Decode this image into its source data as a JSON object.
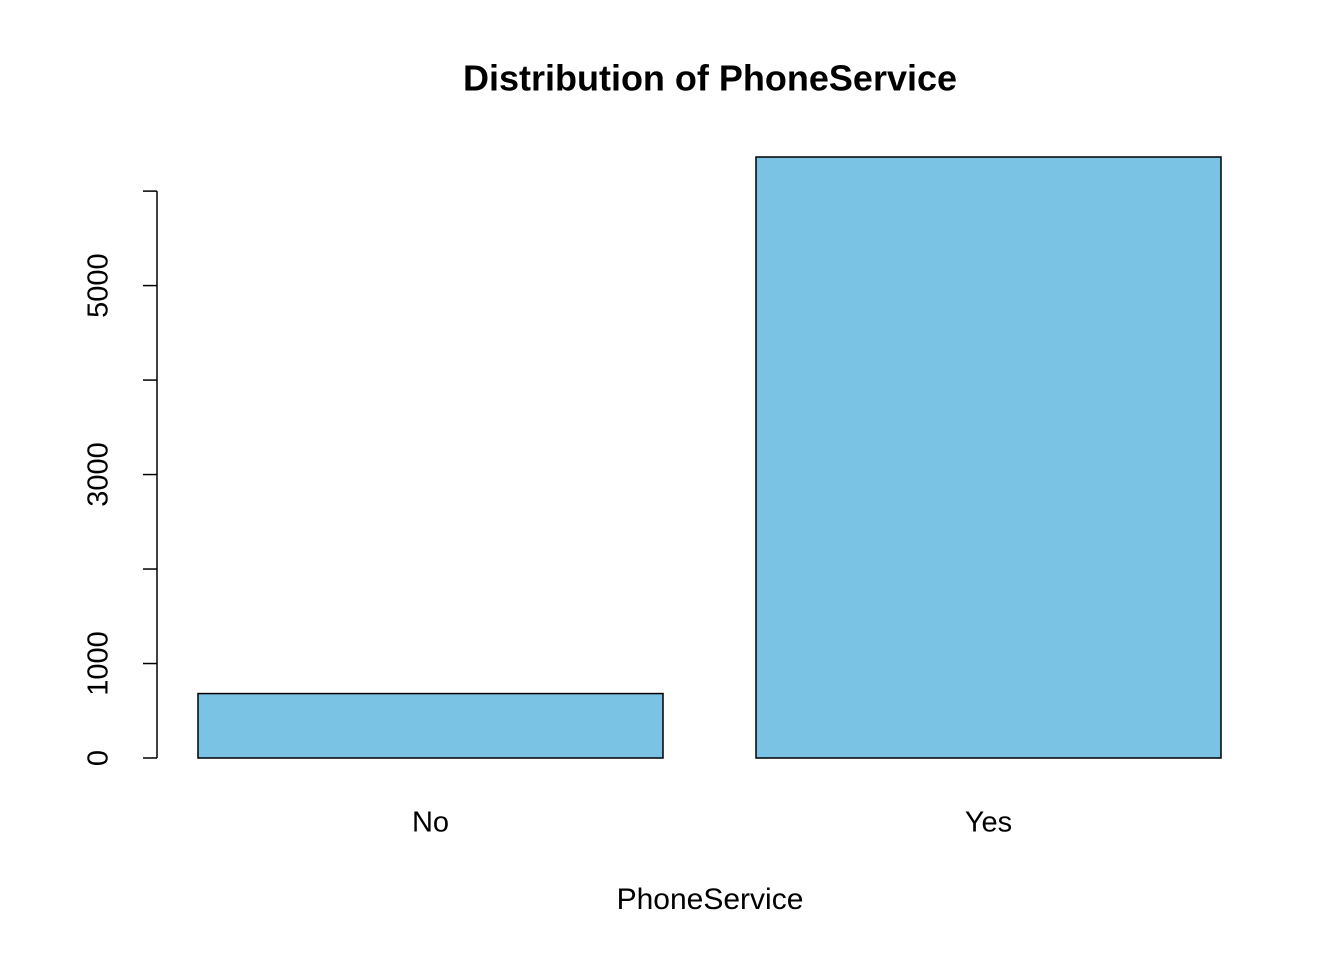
{
  "chart_data": {
    "type": "bar",
    "title": "Distribution of PhoneService",
    "x_label": "PhoneService",
    "categories": [
      "No",
      "Yes"
    ],
    "values": [
      682,
      6361
    ],
    "color": "#7bc3e5",
    "ylim": [
      0,
      6361
    ],
    "yticks": [
      0,
      1000,
      3000,
      5000
    ],
    "yminorticks": [
      2000,
      4000,
      6000
    ],
    "grid": false
  }
}
